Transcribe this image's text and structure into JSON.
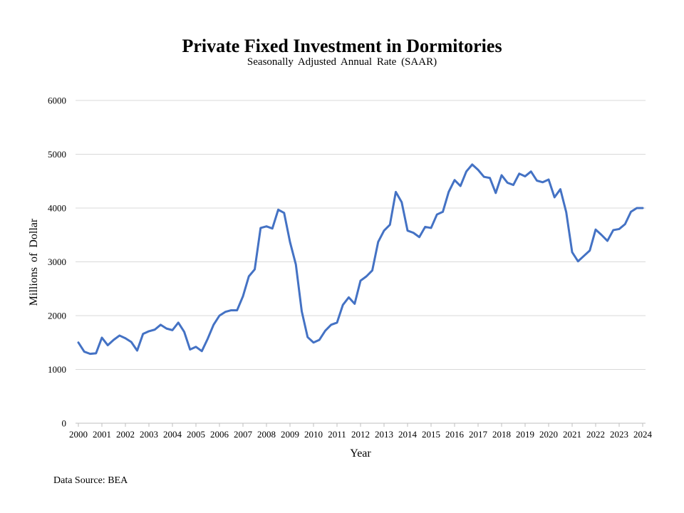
{
  "chart_data": {
    "type": "line",
    "title": "Private Fixed Investment in Dormitories",
    "subtitle": "Seasonally Adjusted Annual Rate (SAAR)",
    "xlabel": "Year",
    "ylabel": "Millions of Dollar",
    "source": "Data Source: BEA",
    "ylim": [
      0,
      6000
    ],
    "yticks": [
      0,
      1000,
      2000,
      3000,
      4000,
      5000,
      6000
    ],
    "xticks": [
      "2000",
      "2001",
      "2002",
      "2003",
      "2004",
      "2005",
      "2006",
      "2007",
      "2008",
      "2009",
      "2010",
      "2011",
      "2012",
      "2013",
      "2014",
      "2015",
      "2016",
      "2017",
      "2018",
      "2019",
      "2020",
      "2021",
      "2022",
      "2023",
      "2024"
    ],
    "x_start": "2000-Q1",
    "x_end": "2024-Q1",
    "grid": "horizontal",
    "line_color": "#4472c4",
    "series": [
      {
        "name": "",
        "values": [
          1500,
          1330,
          1290,
          1300,
          1590,
          1450,
          1550,
          1630,
          1580,
          1510,
          1350,
          1660,
          1710,
          1740,
          1830,
          1760,
          1730,
          1870,
          1700,
          1370,
          1420,
          1340,
          1570,
          1830,
          2000,
          2070,
          2100,
          2100,
          2360,
          2730,
          2860,
          3630,
          3660,
          3620,
          3970,
          3910,
          3370,
          2950,
          2080,
          1600,
          1500,
          1550,
          1720,
          1830,
          1870,
          2200,
          2340,
          2220,
          2650,
          2730,
          2840,
          3370,
          3580,
          3690,
          4300,
          4110,
          3580,
          3540,
          3460,
          3650,
          3630,
          3880,
          3930,
          4300,
          4520,
          4410,
          4680,
          4810,
          4710,
          4580,
          4560,
          4280,
          4610,
          4470,
          4430,
          4640,
          4590,
          4680,
          4510,
          4480,
          4530,
          4200,
          4350,
          3920,
          3180,
          3010,
          3110,
          3210,
          3600,
          3500,
          3390,
          3590,
          3610,
          3700,
          3930,
          4000,
          4000
        ]
      }
    ]
  }
}
